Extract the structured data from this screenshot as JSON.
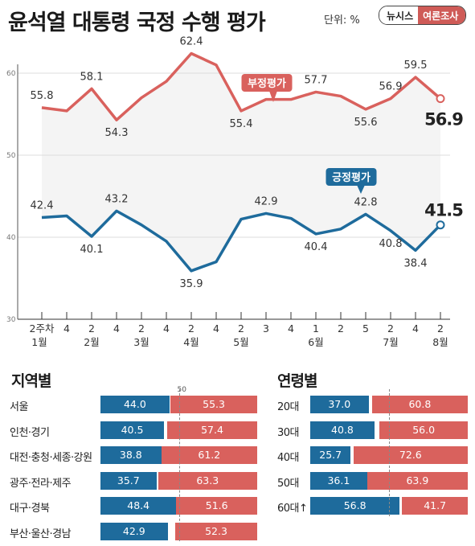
{
  "header": {
    "title": "윤석열 대통령 국정 수행 평가",
    "unit": "단위: %",
    "brand_left": "뉴시스",
    "brand_right": "여론조사"
  },
  "chart_data": [
    {
      "type": "line",
      "ylim": [
        30,
        65
      ],
      "y_ticks": [
        30,
        40,
        50,
        60
      ],
      "x_labels_week": [
        "2주차",
        "4",
        "2",
        "4",
        "2",
        "4",
        "2",
        "4",
        "2",
        "3",
        "4",
        "1",
        "2",
        "5",
        "2",
        "4",
        "2"
      ],
      "x_labels_month": [
        "1월",
        "2월",
        "3월",
        "4월",
        "5월",
        "6월",
        "7월",
        "8월"
      ],
      "month_anchor_index": [
        0,
        2,
        4,
        6,
        8,
        11,
        14,
        16
      ],
      "series": [
        {
          "name": "부정평가",
          "color": "#d9615d",
          "values": [
            55.8,
            55.4,
            58.1,
            54.3,
            57.0,
            59.0,
            62.4,
            61.0,
            55.4,
            56.8,
            56.8,
            57.7,
            57.2,
            55.6,
            56.9,
            59.5,
            56.9
          ],
          "labeled_index": [
            0,
            2,
            3,
            6,
            8,
            11,
            13,
            14,
            15,
            16
          ],
          "final_label": "56.9"
        },
        {
          "name": "긍정평가",
          "color": "#1e6b9c",
          "values": [
            42.4,
            42.6,
            40.1,
            43.2,
            41.5,
            39.5,
            35.9,
            37.0,
            42.2,
            42.9,
            42.3,
            40.4,
            41.0,
            42.8,
            40.8,
            38.4,
            41.5
          ],
          "labeled_index": [
            0,
            2,
            3,
            6,
            9,
            11,
            13,
            14,
            15,
            16
          ],
          "final_label": "41.5"
        }
      ]
    },
    {
      "type": "bar",
      "title": "지역별",
      "categories": [
        "서울",
        "인천·경기",
        "대전·충청·세종·강원",
        "광주·전라·제주",
        "대구·경북",
        "부산·울산·경남"
      ],
      "series": [
        {
          "name": "긍정",
          "values": [
            44.0,
            40.5,
            38.8,
            35.7,
            48.4,
            42.9
          ]
        },
        {
          "name": "부정",
          "values": [
            55.3,
            57.4,
            61.2,
            63.3,
            51.6,
            52.3
          ]
        }
      ],
      "reference_line": 50
    },
    {
      "type": "bar",
      "title": "연령별",
      "categories": [
        "20대",
        "30대",
        "40대",
        "50대",
        "60대↑"
      ],
      "series": [
        {
          "name": "긍정",
          "values": [
            37.0,
            40.8,
            25.7,
            36.1,
            56.8
          ]
        },
        {
          "name": "부정",
          "values": [
            60.8,
            56.0,
            72.6,
            63.9,
            41.7
          ]
        }
      ]
    }
  ],
  "colors": {
    "positive": "#1e6b9c",
    "negative": "#d9615d"
  },
  "icons": {
    "brand": "news-brand-badge"
  }
}
